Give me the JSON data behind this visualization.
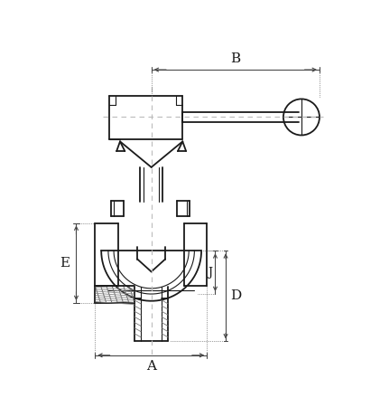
{
  "bg_color": "#ffffff",
  "line_color": "#1a1a1a",
  "dim_color": "#444444",
  "dash_color": "#bbbbbb",
  "fig_width": 4.21,
  "fig_height": 4.5,
  "dpi": 100,
  "labels": {
    "A": "A",
    "B": "B",
    "D": "D",
    "E": "E",
    "J": "J"
  }
}
